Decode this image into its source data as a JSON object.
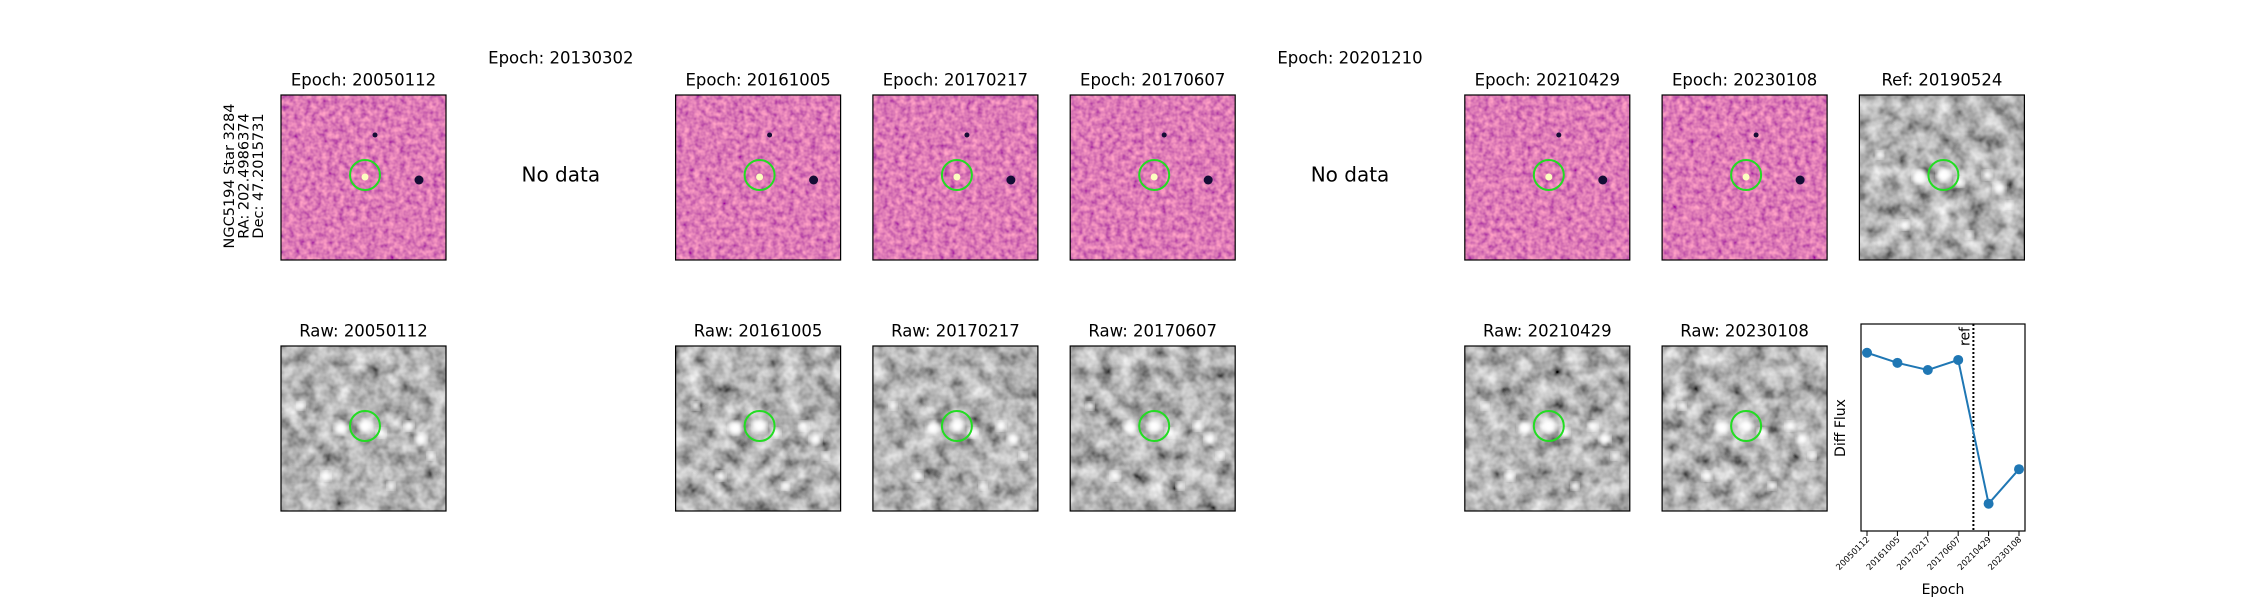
{
  "figure_label": [
    "NGC5194 Star 3284",
    "RA: 202.4986374",
    "Dec: 47.2015731"
  ],
  "diff_panels": [
    {
      "title": "Epoch: 20050112"
    },
    {
      "title": "Epoch: 20130302",
      "note": "No data"
    },
    {
      "title": "Epoch: 20161005"
    },
    {
      "title": "Epoch: 20170217"
    },
    {
      "title": "Epoch: 20170607"
    },
    {
      "title": "Epoch: 20201210",
      "note": "No data"
    },
    {
      "title": "Epoch: 20210429"
    },
    {
      "title": "Epoch: 20230108"
    }
  ],
  "ref_panel": {
    "title": "Ref: 20190524"
  },
  "raw_panels": [
    {
      "title": "Raw: 20050112"
    },
    {
      "title": "Raw: 20161005"
    },
    {
      "title": "Raw: 20170217"
    },
    {
      "title": "Raw: 20170607"
    },
    {
      "title": "Raw: 20210429"
    },
    {
      "title": "Raw: 20230108"
    }
  ],
  "chart_data": {
    "type": "line",
    "categories": [
      "20050112",
      "20161005",
      "20170217",
      "20170607",
      "20210429",
      "20230108"
    ],
    "values": [
      124,
      117,
      112,
      119,
      19,
      43
    ],
    "color": "#1f77b4",
    "ylim": [
      0,
      144
    ],
    "ylabel": "Diff Flux",
    "xlabel": "Epoch",
    "ref_line": {
      "position": 3.5,
      "label": "ref"
    }
  }
}
